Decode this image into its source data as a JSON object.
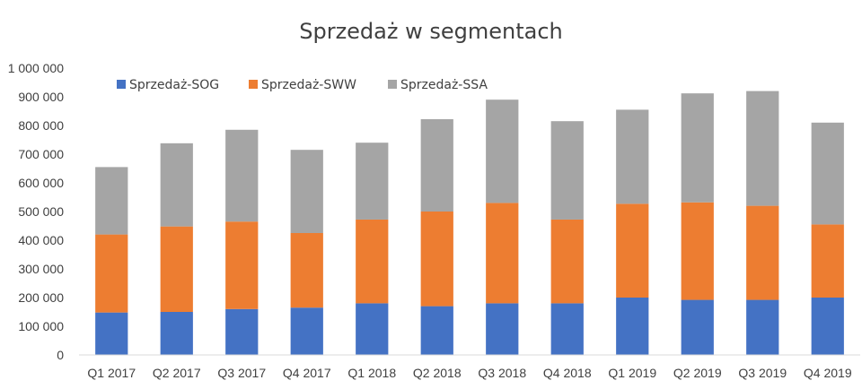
{
  "chart_data": {
    "type": "bar",
    "stacked": true,
    "title": "Sprzedaż w segmentach",
    "xlabel": "",
    "ylabel": "",
    "ylim": [
      0,
      1000000
    ],
    "y_ticks": [
      "0",
      "100 000",
      "200 000",
      "300 000",
      "400 000",
      "500 000",
      "600 000",
      "700 000",
      "800 000",
      "900 000",
      "1 000 000"
    ],
    "grid": false,
    "legend_position": "top-left",
    "categories": [
      "Q1 2017",
      "Q2 2017",
      "Q3 2017",
      "Q4 2017",
      "Q1 2018",
      "Q2 2018",
      "Q3 2018",
      "Q4 2018",
      "Q1 2019",
      "Q2 2019",
      "Q3 2019",
      "Q4 2019"
    ],
    "series": [
      {
        "name": "Sprzedaż-SOG",
        "color": "#4472C4",
        "values": [
          148000,
          150000,
          160000,
          165000,
          180000,
          170000,
          180000,
          180000,
          200000,
          192000,
          192000,
          200000
        ]
      },
      {
        "name": "Sprzedaż-SWW",
        "color": "#ED7D31",
        "values": [
          272000,
          298000,
          305000,
          260000,
          292000,
          330000,
          350000,
          292000,
          327000,
          340000,
          328000,
          255000
        ]
      },
      {
        "name": "Sprzedaż-SSA",
        "color": "#A5A5A5",
        "values": [
          235000,
          290000,
          320000,
          290000,
          268000,
          322000,
          360000,
          343000,
          328000,
          380000,
          400000,
          355000
        ]
      }
    ]
  }
}
